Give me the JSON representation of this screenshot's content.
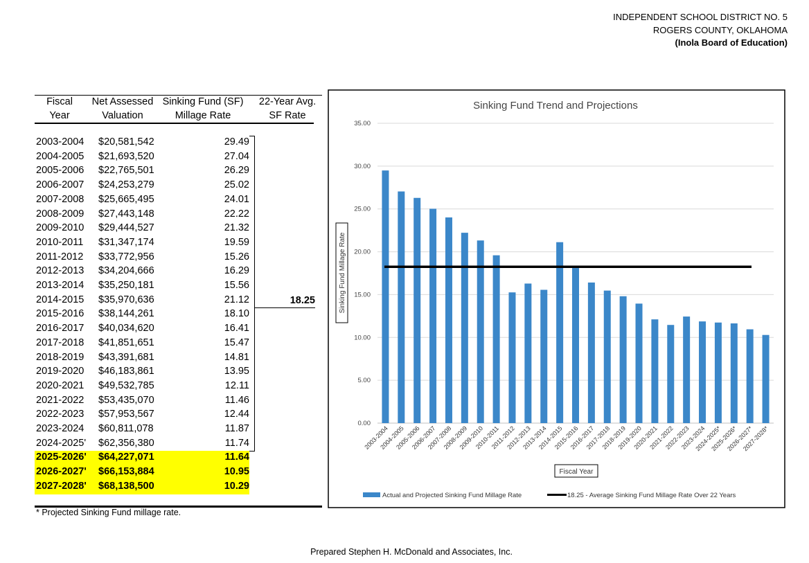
{
  "header": {
    "lines": [
      "INDEPENDENT SCHOOL DISTRICT NO. 5",
      "ROGERS COUNTY, OKLAHOMA",
      "(Inola Board of Education)"
    ]
  },
  "table": {
    "columns": [
      [
        "Fiscal",
        "Year"
      ],
      [
        "Net Assessed",
        "Valuation"
      ],
      [
        "Sinking Fund (SF)",
        "Millage Rate"
      ],
      [
        "22-Year Avg.",
        "SF Rate"
      ]
    ],
    "rows": [
      [
        "2003-2004",
        "$20,581,542",
        "29.49"
      ],
      [
        "2004-2005",
        "$21,693,520",
        "27.04"
      ],
      [
        "2005-2006",
        "$22,765,501",
        "26.29"
      ],
      [
        "2006-2007",
        "$24,253,279",
        "25.02"
      ],
      [
        "2007-2008",
        "$25,665,495",
        "24.01"
      ],
      [
        "2008-2009",
        "$27,443,148",
        "22.22"
      ],
      [
        "2009-2010",
        "$29,444,527",
        "21.32"
      ],
      [
        "2010-2011",
        "$31,347,174",
        "19.59"
      ],
      [
        "2011-2012",
        "$33,772,956",
        "15.26"
      ],
      [
        "2012-2013",
        "$34,204,666",
        "16.29"
      ],
      [
        "2013-2014",
        "$35,250,181",
        "15.56"
      ],
      [
        "2014-2015",
        "$35,970,636",
        "21.12"
      ],
      [
        "2015-2016",
        "$38,144,261",
        "18.10"
      ],
      [
        "2016-2017",
        "$40,034,620",
        "16.41"
      ],
      [
        "2017-2018",
        "$41,851,651",
        "15.47"
      ],
      [
        "2018-2019",
        "$43,391,681",
        "14.81"
      ],
      [
        "2019-2020",
        "$46,183,861",
        "13.95"
      ],
      [
        "2020-2021",
        "$49,532,785",
        "12.11"
      ],
      [
        "2021-2022",
        "$53,435,070",
        "11.46"
      ],
      [
        "2022-2023",
        "$57,953,567",
        "12.44"
      ],
      [
        "2023-2024",
        "$60,811,078",
        "11.87"
      ],
      [
        "2024-2025'",
        "$62,356,380",
        "11.74"
      ],
      [
        "2025-2026'",
        "$64,227,071",
        "11.64"
      ],
      [
        "2026-2027'",
        "$66,153,884",
        "10.95"
      ],
      [
        "2027-2028'",
        "$68,138,500",
        "10.29"
      ]
    ],
    "average": "18.25",
    "footnote": "* Projected Sinking Fund millage rate."
  },
  "chart_data": {
    "type": "bar",
    "title": "Sinking Fund Trend and Projections",
    "x_label": "Fiscal Year",
    "y_label": "Sinking Fund Millage Rate",
    "categories": [
      "2003-2004",
      "2004-2005",
      "2005-2006",
      "2006-2007",
      "2007-2008",
      "2008-2009",
      "2009-2010",
      "2010-2011",
      "2011-2012",
      "2012-2013",
      "2013-2014",
      "2014-2015",
      "2015-2016",
      "2016-2017",
      "2017-2018",
      "2018-2019",
      "2019-2020",
      "2020-2021",
      "2021-2022",
      "2022-2023",
      "2023-2024",
      "2024-2025*",
      "2025-2026*",
      "2026-2027*",
      "2027-2028*"
    ],
    "series": [
      {
        "name": "Actual and Projected Sinking Fund Millage Rate",
        "color": "#3b87c9",
        "values": [
          29.49,
          27.04,
          26.29,
          25.02,
          24.01,
          22.22,
          21.32,
          19.59,
          15.26,
          16.29,
          15.56,
          21.12,
          18.1,
          16.41,
          15.47,
          14.81,
          13.95,
          12.11,
          11.46,
          12.44,
          11.87,
          11.74,
          11.64,
          10.95,
          10.29
        ]
      }
    ],
    "reference_line": {
      "name": "18.25 - Average Sinking Fund Millage Rate Over 22 Years",
      "value": 18.25,
      "color": "#000000"
    },
    "ylim": [
      0,
      35
    ],
    "yticks": [
      {
        "value": 0,
        "label": "0.00"
      },
      {
        "value": 5,
        "label": "5.00"
      },
      {
        "value": 10,
        "label": "10.00"
      },
      {
        "value": 15,
        "label": "15.00"
      },
      {
        "value": 20,
        "label": "20.00"
      },
      {
        "value": 25,
        "label": "25.00"
      },
      {
        "value": 30,
        "label": "30.00"
      },
      {
        "value": 35,
        "label": "35.00"
      }
    ],
    "grid": true
  },
  "footer": "Prepared Stephen H. McDonald and Associates, Inc."
}
